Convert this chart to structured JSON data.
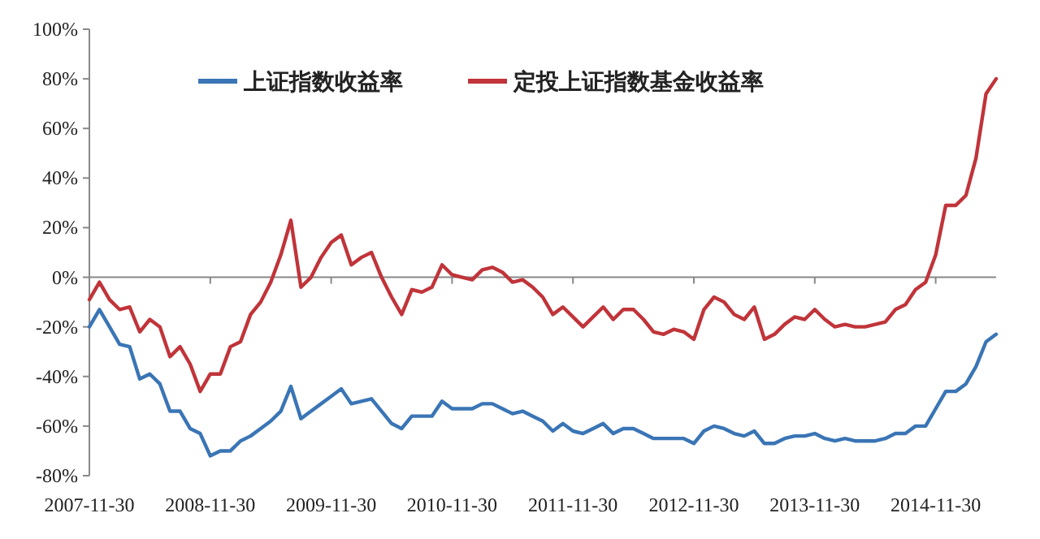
{
  "chart_data": {
    "type": "line",
    "categories": [
      "2007-11-30",
      null,
      null,
      null,
      null,
      null,
      null,
      null,
      null,
      null,
      null,
      null,
      "2008-11-30",
      null,
      null,
      null,
      null,
      null,
      null,
      null,
      null,
      null,
      null,
      null,
      "2009-11-30",
      null,
      null,
      null,
      null,
      null,
      null,
      null,
      null,
      null,
      null,
      null,
      "2010-11-30",
      null,
      null,
      null,
      null,
      null,
      null,
      null,
      null,
      null,
      null,
      null,
      "2011-11-30",
      null,
      null,
      null,
      null,
      null,
      null,
      null,
      null,
      null,
      null,
      null,
      "2012-11-30",
      null,
      null,
      null,
      null,
      null,
      null,
      null,
      null,
      null,
      null,
      null,
      "2013-11-30",
      null,
      null,
      null,
      null,
      null,
      null,
      null,
      null,
      null,
      null,
      null,
      "2014-11-30",
      null,
      null,
      null,
      null,
      null,
      null
    ],
    "series": [
      {
        "name": "上证指数收益率",
        "color": "#3a75b5",
        "values": [
          -20,
          -13,
          -20,
          -27,
          -28,
          -41,
          -39,
          -43,
          -54,
          -54,
          -61,
          -63,
          -72,
          -70,
          -70,
          -66,
          -64,
          -61,
          -58,
          -54,
          -44,
          -57,
          -54,
          -51,
          -48,
          -45,
          -51,
          -50,
          -49,
          -54,
          -59,
          -61,
          -56,
          -56,
          -56,
          -50,
          -53,
          -53,
          -53,
          -51,
          -51,
          -53,
          -55,
          -54,
          -56,
          -58,
          -62,
          -59,
          -62,
          -63,
          -61,
          -59,
          -63,
          -61,
          -61,
          -63,
          -65,
          -65,
          -65,
          -65,
          -67,
          -62,
          -60,
          -61,
          -63,
          -64,
          -62,
          -67,
          -67,
          -65,
          -64,
          -64,
          -63,
          -65,
          -66,
          -65,
          -66,
          -66,
          -66,
          -65,
          -63,
          -63,
          -60,
          -60,
          -53,
          -46,
          -46,
          -43,
          -36,
          -26,
          -23
        ]
      },
      {
        "name": "定投上证指数基金收益率",
        "color": "#c0343a",
        "values": [
          -9,
          -2,
          -9,
          -13,
          -12,
          -22,
          -17,
          -20,
          -32,
          -28,
          -35,
          -46,
          -39,
          -39,
          -28,
          -26,
          -15,
          -10,
          -2,
          9,
          23,
          -4,
          0,
          8,
          14,
          17,
          5,
          8,
          10,
          0,
          -8,
          -15,
          -5,
          -6,
          -4,
          5,
          1,
          0,
          -1,
          3,
          4,
          2,
          -2,
          -1,
          -4,
          -8,
          -15,
          -12,
          -16,
          -20,
          -16,
          -12,
          -17,
          -13,
          -13,
          -17,
          -22,
          -23,
          -21,
          -22,
          -25,
          -13,
          -8,
          -10,
          -15,
          -17,
          -12,
          -25,
          -23,
          -19,
          -16,
          -17,
          -13,
          -17,
          -20,
          -19,
          -20,
          -20,
          -19,
          -18,
          -13,
          -11,
          -5,
          -2,
          9,
          29,
          29,
          33,
          48,
          74,
          80
        ]
      }
    ],
    "ylim": [
      -80,
      100
    ],
    "yticks": [
      {
        "value": -80,
        "label": "-80%"
      },
      {
        "value": -60,
        "label": "-60%"
      },
      {
        "value": -40,
        "label": "-40%"
      },
      {
        "value": -20,
        "label": "-20%"
      },
      {
        "value": 0,
        "label": "0%"
      },
      {
        "value": 20,
        "label": "20%"
      },
      {
        "value": 40,
        "label": "40%"
      },
      {
        "value": 60,
        "label": "60%"
      },
      {
        "value": 80,
        "label": "80%"
      },
      {
        "value": 100,
        "label": "100%"
      }
    ],
    "legend": "top",
    "marker": "none",
    "line_style": "solid"
  }
}
